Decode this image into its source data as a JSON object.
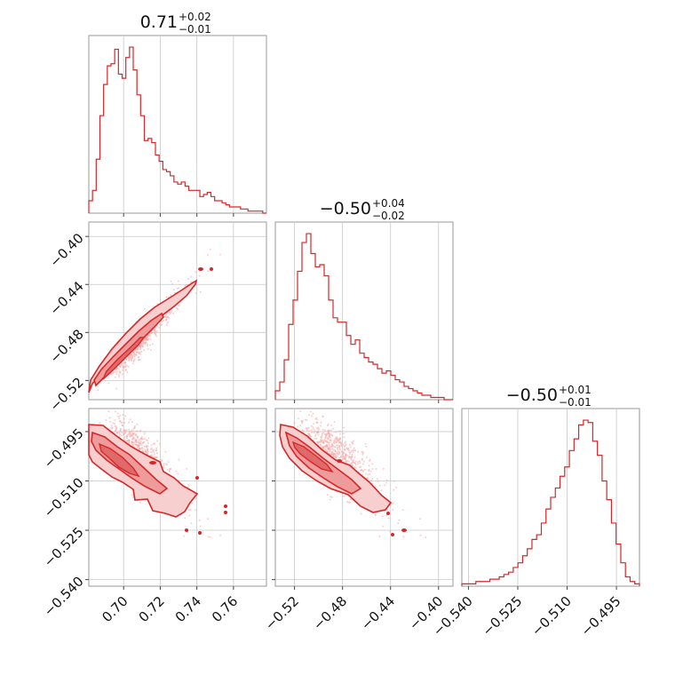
{
  "chart_data": {
    "type": "corner",
    "color": "#d62728",
    "parameters": [
      {
        "title_value": "0.71",
        "title_plus": "+0.02",
        "title_minus": "−0.01",
        "range": [
          0.681,
          0.778
        ],
        "ticks": [
          0.7,
          0.72,
          0.74,
          0.76
        ],
        "tick_labels": [
          "0.70",
          "0.72",
          "0.74",
          "0.76"
        ],
        "hist_counts": [
          6,
          11,
          26,
          47,
          62,
          71,
          72,
          79,
          67,
          65,
          75,
          80,
          69,
          57,
          47,
          35,
          36,
          34,
          28,
          25,
          21,
          20,
          18,
          15,
          14,
          15,
          13,
          11,
          11,
          11,
          8,
          9,
          10,
          8,
          6,
          6,
          5,
          4,
          3,
          3,
          3,
          2,
          2,
          1,
          1,
          1,
          1,
          0
        ]
      },
      {
        "title_value": "−0.50",
        "title_plus": "+0.04",
        "title_minus": "−0.02",
        "range": [
          -0.536,
          -0.388
        ],
        "ticks": [
          -0.52,
          -0.48,
          -0.44,
          -0.4
        ],
        "tick_labels": [
          "−0.52",
          "−0.48",
          "−0.44",
          "−0.40"
        ],
        "tick_labels_y": [
          "−0.40",
          "−0.44",
          "−0.48",
          "−0.52"
        ],
        "hist_counts": [
          4,
          8,
          18,
          34,
          45,
          58,
          71,
          75,
          66,
          60,
          61,
          56,
          45,
          37,
          35,
          35,
          29,
          25,
          27,
          21,
          19,
          17,
          16,
          14,
          12,
          13,
          11,
          9,
          8,
          6,
          5,
          4,
          3,
          2,
          2,
          1,
          1,
          1,
          0,
          0
        ]
      },
      {
        "title_value": "−0.50",
        "title_plus": "+0.01",
        "title_minus": "−0.01",
        "range": [
          -0.542,
          -0.488
        ],
        "ticks": [
          -0.54,
          -0.525,
          -0.51,
          -0.495
        ],
        "tick_labels": [
          "−0.540",
          "−0.525",
          "−0.510",
          "−0.495"
        ],
        "tick_labels_y": [
          "−0.495",
          "−0.510",
          "−0.525",
          "−0.540"
        ],
        "hist_counts": [
          1,
          1,
          1,
          2,
          2,
          2,
          3,
          3,
          4,
          5,
          6,
          8,
          10,
          13,
          16,
          20,
          22,
          27,
          33,
          38,
          42,
          47,
          51,
          58,
          63,
          69,
          71,
          70,
          62,
          56,
          45,
          37,
          27,
          18,
          10,
          4,
          2,
          1
        ]
      }
    ]
  }
}
